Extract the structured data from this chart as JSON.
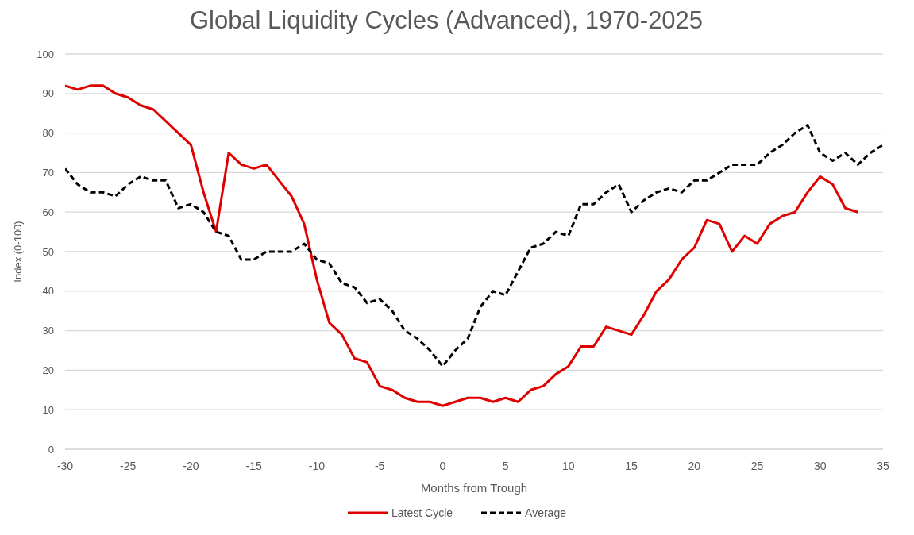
{
  "chart_data": {
    "type": "line",
    "title": "Global Liquidity Cycles (Advanced), 1970-2025",
    "xlabel": "Months from Trough",
    "ylabel": "Index (0-100)",
    "x": [
      -30,
      -29,
      -28,
      -27,
      -26,
      -25,
      -24,
      -23,
      -22,
      -21,
      -20,
      -19,
      -18,
      -17,
      -16,
      -15,
      -14,
      -13,
      -12,
      -11,
      -10,
      -9,
      -8,
      -7,
      -6,
      -5,
      -4,
      -3,
      -2,
      -1,
      0,
      1,
      2,
      3,
      4,
      5,
      6,
      7,
      8,
      9,
      10,
      11,
      12,
      13,
      14,
      15,
      16,
      17,
      18,
      19,
      20,
      21,
      22,
      23,
      24,
      25,
      26,
      27,
      28,
      29,
      30,
      31,
      32,
      33,
      34,
      35
    ],
    "series": [
      {
        "name": "Latest Cycle",
        "color": "#e00000",
        "line_style": "solid",
        "values": [
          92,
          91,
          92,
          92,
          90,
          89,
          87,
          86,
          83,
          80,
          77,
          65,
          55,
          75,
          72,
          71,
          72,
          68,
          64,
          57,
          43,
          32,
          29,
          23,
          22,
          16,
          15,
          13,
          12,
          12,
          11,
          12,
          13,
          13,
          12,
          13,
          12,
          15,
          16,
          19,
          21,
          26,
          26,
          31,
          30,
          29,
          34,
          40,
          43,
          48,
          51,
          58,
          57,
          50,
          54,
          52,
          57,
          59,
          60,
          65,
          69,
          67,
          61,
          60,
          null,
          null
        ]
      },
      {
        "name": "Average",
        "color": "#000000",
        "line_style": "dashed",
        "values": [
          71,
          67,
          65,
          65,
          64,
          67,
          69,
          68,
          68,
          61,
          62,
          60,
          55,
          54,
          48,
          48,
          50,
          50,
          50,
          52,
          48,
          47,
          42,
          41,
          37,
          38,
          35,
          30,
          28,
          25,
          21,
          25,
          28,
          36,
          40,
          39,
          45,
          51,
          52,
          55,
          54,
          62,
          62,
          65,
          67,
          60,
          63,
          65,
          66,
          65,
          68,
          68,
          70,
          72,
          72,
          72,
          75,
          77,
          80,
          82,
          75,
          73,
          75,
          72,
          75,
          77
        ]
      }
    ],
    "xlim": [
      -30,
      35
    ],
    "xticks": [
      -30,
      -25,
      -20,
      -15,
      -10,
      -5,
      0,
      5,
      10,
      15,
      20,
      25,
      30,
      35
    ],
    "ylim": [
      0,
      100
    ],
    "yticks": [
      0,
      10,
      20,
      30,
      40,
      50,
      60,
      70,
      80,
      90,
      100
    ],
    "grid": "y",
    "legend": "bottom"
  }
}
